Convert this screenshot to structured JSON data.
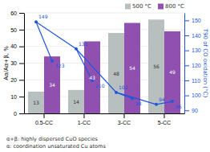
{
  "chart_data": {
    "type": "bar",
    "categories": [
      "0.5-CC",
      "1-CC",
      "3-CC",
      "5-CC"
    ],
    "series": [
      {
        "name": "500 °C",
        "type": "bar",
        "color": "#b8bfbf",
        "values": [
          13,
          14,
          48,
          56
        ]
      },
      {
        "name": "800 °C",
        "type": "bar",
        "color": "#9050b0",
        "values": [
          34,
          43,
          54,
          49
        ]
      },
      {
        "type": "line",
        "axis": "y2",
        "color": "#2255dd",
        "marker": "circle",
        "line_style": "solid",
        "values": [
          149,
          131,
          102,
          94
        ]
      },
      {
        "type": "line",
        "axis": "y2",
        "color": "#2255dd",
        "marker": "circle",
        "line_style": "none",
        "values": [
          123,
          110,
          98,
          96
        ]
      }
    ],
    "ylabel": "Aα/Aα+β, %",
    "y2label": "T90 of CO oxidation (°C)",
    "ylim": [
      0,
      60
    ],
    "yticks": [
      0,
      10,
      20,
      30,
      40,
      50,
      60
    ],
    "y2lim": [
      88,
      155
    ],
    "y2ticks": [
      90,
      100,
      110,
      120,
      130,
      140,
      150
    ],
    "grid": true,
    "legend": "upper right",
    "data_labels": true,
    "annotations": [
      "α+β: highly dispersed CuO species",
      "α: coordination unsaturated Cu atoms"
    ]
  }
}
